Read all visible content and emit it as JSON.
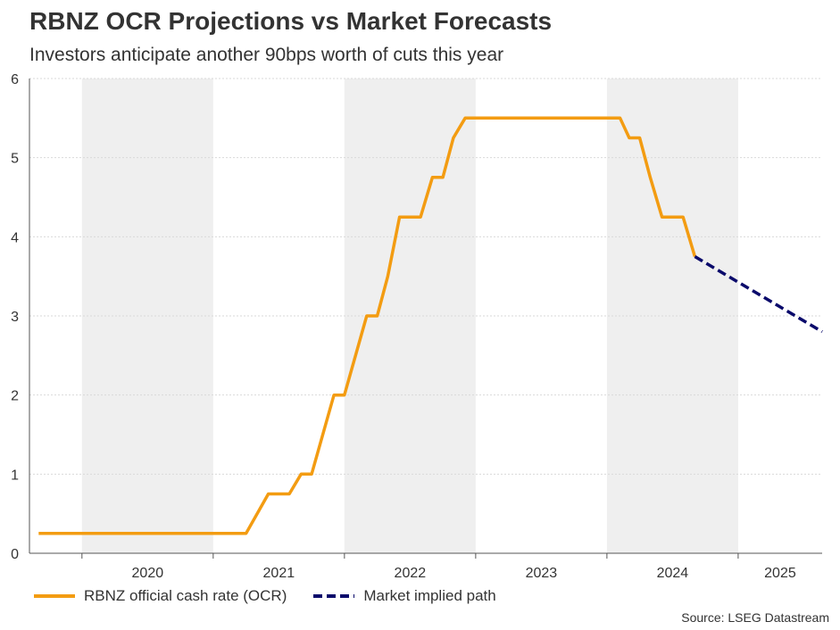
{
  "header": {
    "title": "RBNZ OCR Projections vs Market Forecasts",
    "subtitle": "Investors anticipate another 90bps worth of cuts this year"
  },
  "footer": {
    "source": "Source: LSEG Datastream"
  },
  "colors": {
    "ocr": "#f39c12",
    "market": "#0a0a6b",
    "band": "#efefef",
    "grid": "#d9d9d9",
    "axis": "#555555"
  },
  "chart_data": {
    "type": "line",
    "title": "RBNZ OCR Projections vs Market Forecasts",
    "subtitle": "Investors anticipate another 90bps worth of cuts this year",
    "xlabel": "",
    "ylabel": "",
    "xlim": [
      2019.6,
      2025.64
    ],
    "ylim": [
      0,
      6
    ],
    "yticks": [
      0,
      1,
      2,
      3,
      4,
      5,
      6
    ],
    "year_labels": [
      "2020",
      "2021",
      "2022",
      "2023",
      "2024",
      "2025"
    ],
    "shaded_years": [
      2020,
      2022,
      2024
    ],
    "grid": true,
    "legend_position": "bottom-left",
    "series": [
      {
        "name": "RBNZ official cash rate (OCR)",
        "style": "solid",
        "points": [
          [
            2019.67,
            0.25
          ],
          [
            2021.25,
            0.25
          ],
          [
            2021.42,
            0.75
          ],
          [
            2021.58,
            0.75
          ],
          [
            2021.67,
            1.0
          ],
          [
            2021.75,
            1.0
          ],
          [
            2021.92,
            2.0
          ],
          [
            2022.0,
            2.0
          ],
          [
            2022.17,
            3.0
          ],
          [
            2022.25,
            3.0
          ],
          [
            2022.33,
            3.5
          ],
          [
            2022.42,
            4.25
          ],
          [
            2022.58,
            4.25
          ],
          [
            2022.67,
            4.75
          ],
          [
            2022.75,
            4.75
          ],
          [
            2022.83,
            5.25
          ],
          [
            2022.92,
            5.5
          ],
          [
            2024.1,
            5.5
          ],
          [
            2024.17,
            5.25
          ],
          [
            2024.25,
            5.25
          ],
          [
            2024.33,
            4.75
          ],
          [
            2024.42,
            4.25
          ],
          [
            2024.58,
            4.25
          ],
          [
            2024.67,
            3.75
          ]
        ]
      },
      {
        "name": "Market implied path",
        "style": "dashed",
        "points": [
          [
            2024.67,
            3.75
          ],
          [
            2025.64,
            2.8
          ]
        ]
      }
    ]
  }
}
